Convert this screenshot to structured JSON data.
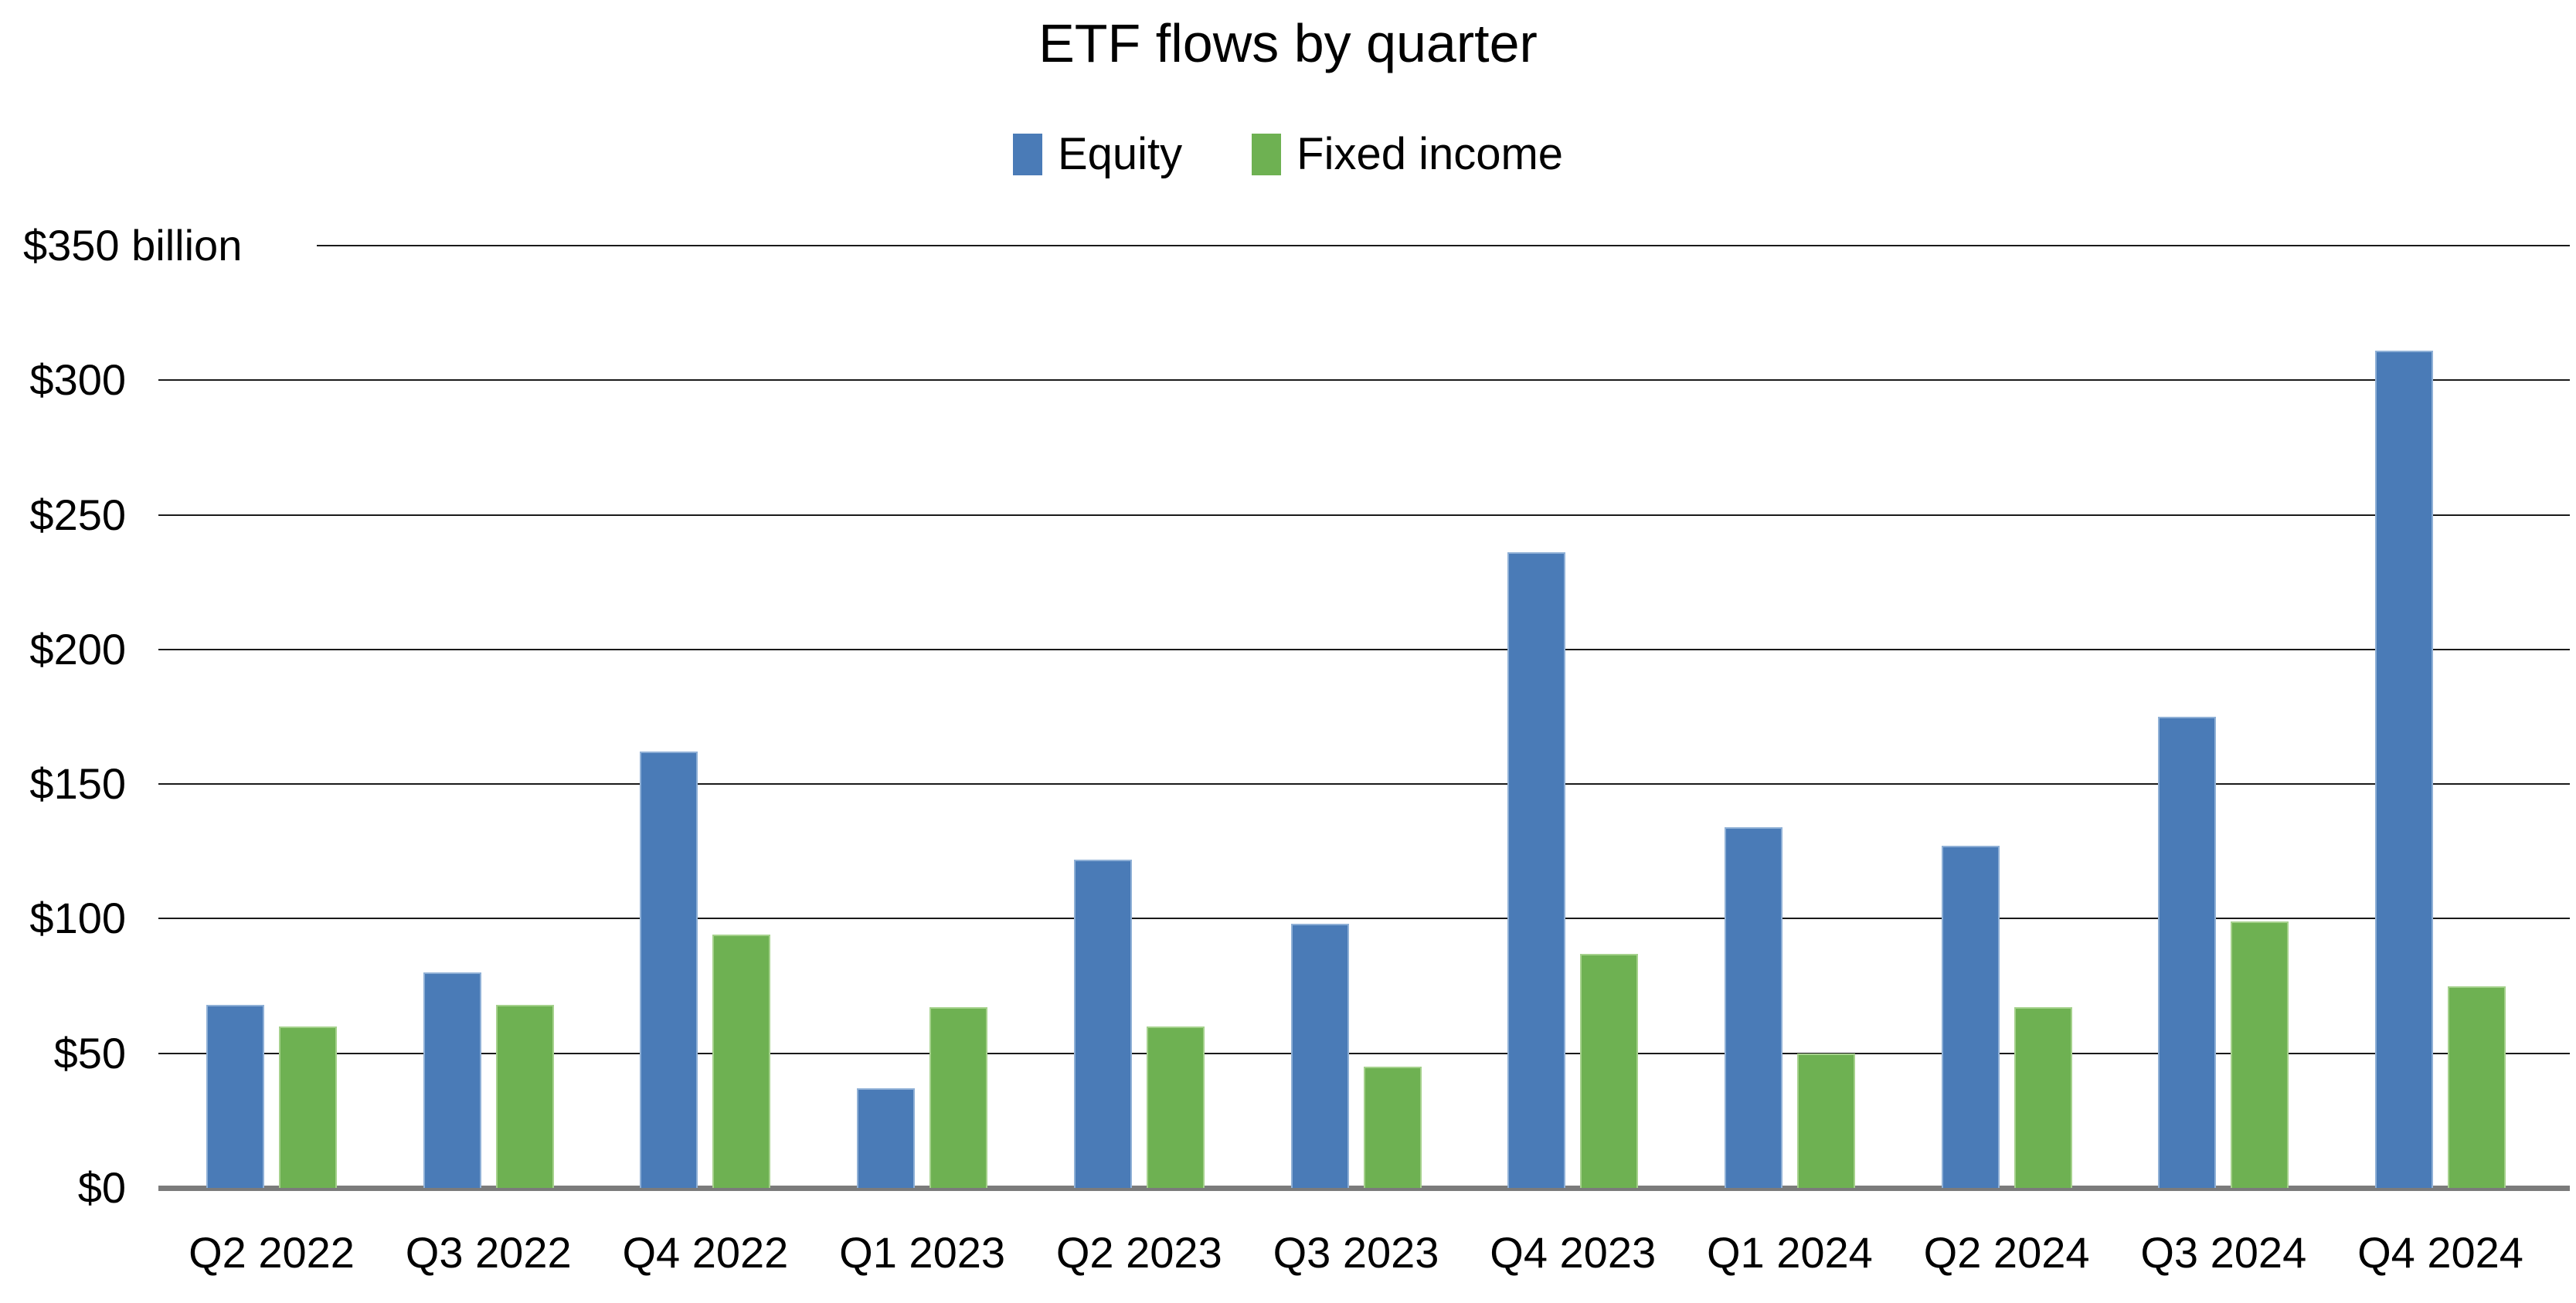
{
  "title": "ETF flows by quarter",
  "legend": {
    "items": [
      {
        "label": "Equity",
        "color": "#4A7BB7"
      },
      {
        "label": "Fixed income",
        "color": "#6EB152"
      }
    ]
  },
  "chart_data": {
    "type": "bar",
    "title": "ETF flows by quarter",
    "units": "USD billions",
    "categories": [
      "Q2 2022",
      "Q3 2022",
      "Q4 2022",
      "Q1 2023",
      "Q2 2023",
      "Q3 2023",
      "Q4 2023",
      "Q1 2024",
      "Q2 2024",
      "Q3 2024",
      "Q4 2024"
    ],
    "series": [
      {
        "name": "Equity",
        "color": "#4A7BB7",
        "edge_color": "#8FB0D6",
        "values": [
          68,
          80,
          162,
          37,
          122,
          98,
          236,
          134,
          127,
          175,
          311
        ]
      },
      {
        "name": "Fixed income",
        "color": "#6EB152",
        "edge_color": "#A5D18C",
        "values": [
          60,
          68,
          94,
          67,
          60,
          45,
          87,
          50,
          67,
          99,
          75
        ]
      }
    ],
    "ylim": [
      0,
      350
    ],
    "y_tick_step": 50,
    "y_tick_labels": [
      "$0",
      "$50",
      "$100",
      "$150",
      "$200",
      "$250",
      "$300",
      "$350 billion"
    ],
    "top_tick_label": "$350 billion",
    "xlabel": "",
    "ylabel": "",
    "grid": true,
    "legend_position": "top center",
    "gridline_color": "#1a1a1a",
    "baseline_color": "#7b7b7b",
    "text_color": "#000000"
  }
}
